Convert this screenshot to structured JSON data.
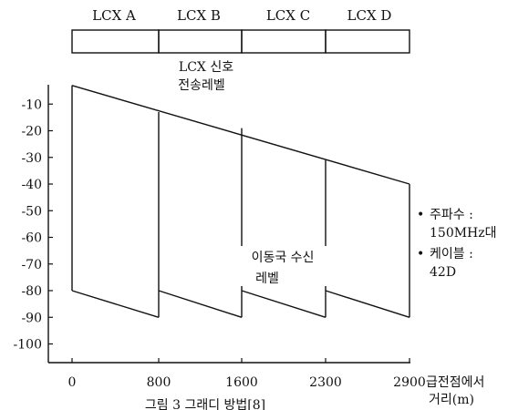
{
  "segments": [
    "LCX A",
    "LCX B",
    "LCX C",
    "LCX D"
  ],
  "chart_data": {
    "type": "line",
    "title": "",
    "xlabel": "급전점에서 거리(m)",
    "ylabel": "",
    "x_ticks": [
      0,
      800,
      1600,
      2300,
      2900
    ],
    "y_ticks": [
      -10,
      -20,
      -30,
      -40,
      -50,
      -60,
      -70,
      -80,
      -90,
      -100
    ],
    "ylim": [
      -105,
      0
    ],
    "series": [
      {
        "points": [
          [
            0,
            -3
          ],
          [
            2900,
            -40
          ]
        ]
      },
      {
        "points": [
          [
            0,
            -80
          ],
          [
            800,
            -90
          ]
        ]
      },
      {
        "points": [
          [
            800,
            -80
          ],
          [
            1600,
            -90
          ]
        ]
      },
      {
        "points": [
          [
            1600,
            -80
          ],
          [
            2300,
            -90
          ]
        ]
      },
      {
        "points": [
          [
            2300,
            -80
          ],
          [
            2900,
            -90
          ]
        ]
      }
    ],
    "verticals": [
      {
        "x": 0,
        "y": [
          -80,
          -3
        ]
      },
      {
        "x": 800,
        "y": [
          -90,
          -13
        ]
      },
      {
        "x": 1600,
        "y": [
          -90,
          -19
        ]
      },
      {
        "x": 2300,
        "y": [
          -90,
          -31
        ]
      },
      {
        "x": 2900,
        "y": [
          -90,
          -40
        ]
      }
    ],
    "annotations": {
      "lcx_signal": [
        "LCX 신호",
        "전송레벨"
      ],
      "mobile_level": [
        "이동국 수신",
        "레벨"
      ]
    }
  },
  "notes": [
    {
      "bullet": "•",
      "lines": [
        "주파수 :",
        "150MHz대"
      ]
    },
    {
      "bullet": "•",
      "lines": [
        "케이블 :",
        "42D"
      ]
    }
  ],
  "caption": "그림 3  그래디 방법[8]"
}
